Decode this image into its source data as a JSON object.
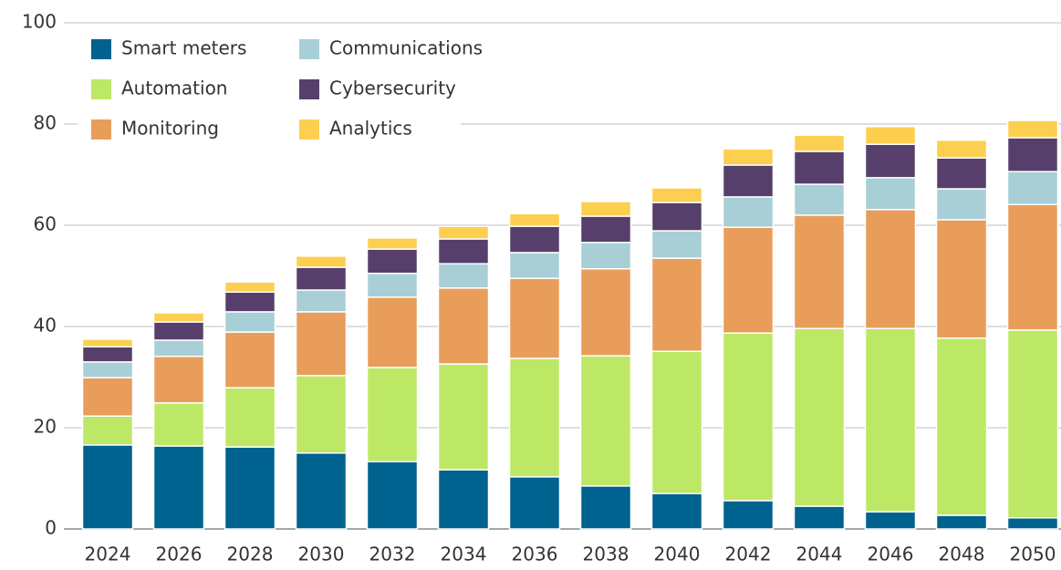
{
  "chart_data": {
    "type": "stacked_bar",
    "categories": [
      "2024",
      "2026",
      "2028",
      "2030",
      "2032",
      "2034",
      "2036",
      "2038",
      "2040",
      "2042",
      "2044",
      "2046",
      "2048",
      "2050"
    ],
    "series": [
      {
        "name": "Smart meters",
        "color": "#00628f",
        "values": [
          16.6,
          16.4,
          16.2,
          15.0,
          13.3,
          11.7,
          10.3,
          8.5,
          7.0,
          5.6,
          4.5,
          3.4,
          2.7,
          2.2
        ]
      },
      {
        "name": "Automation",
        "color": "#bde866",
        "values": [
          5.7,
          8.5,
          11.7,
          15.3,
          18.6,
          20.9,
          23.4,
          25.7,
          28.1,
          33.1,
          35.1,
          36.2,
          35.0,
          37.1
        ]
      },
      {
        "name": "Monitoring",
        "color": "#e99d5b",
        "values": [
          7.6,
          9.2,
          11.0,
          12.6,
          13.9,
          15.0,
          15.8,
          17.2,
          18.4,
          20.9,
          22.4,
          23.5,
          23.4,
          24.8
        ]
      },
      {
        "name": "Communications",
        "color": "#a8cfd6",
        "values": [
          3.1,
          3.2,
          4.0,
          4.3,
          4.7,
          4.8,
          5.1,
          5.2,
          5.4,
          6.0,
          6.1,
          6.3,
          6.1,
          6.5
        ]
      },
      {
        "name": "Cybersecurity",
        "color": "#56406b",
        "values": [
          3.0,
          3.6,
          3.9,
          4.5,
          4.8,
          4.9,
          5.2,
          5.2,
          5.6,
          6.3,
          6.5,
          6.6,
          6.1,
          6.7
        ]
      },
      {
        "name": "Analytics",
        "color": "#fccf50",
        "values": [
          1.5,
          1.8,
          2.0,
          2.2,
          2.2,
          2.5,
          2.5,
          2.9,
          2.9,
          3.2,
          3.2,
          3.5,
          3.5,
          3.4
        ]
      }
    ],
    "ylim": [
      0,
      100
    ],
    "yticks": [
      0,
      20,
      40,
      60,
      80,
      100
    ],
    "grid": true,
    "legend": "upper left"
  }
}
